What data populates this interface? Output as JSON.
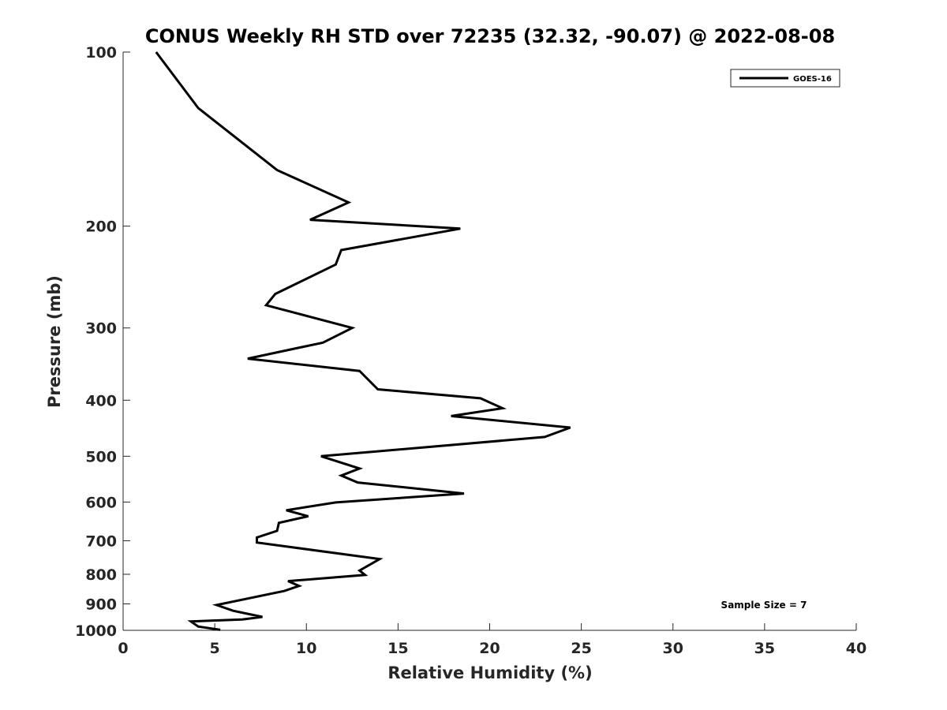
{
  "chart_data": {
    "type": "line",
    "title": "CONUS Weekly RH STD over 72235 (32.32, -90.07) @ 2022-08-08",
    "xlabel": "Relative Humidity (%)",
    "ylabel": "Pressure (mb)",
    "xlim": [
      0,
      40
    ],
    "ylim": [
      100,
      1000
    ],
    "yscale": "log",
    "y_reversed": true,
    "xticks": [
      0,
      5,
      10,
      15,
      20,
      25,
      30,
      35,
      40
    ],
    "yticks": [
      100,
      200,
      300,
      400,
      500,
      600,
      700,
      800,
      900,
      1000
    ],
    "grid": false,
    "legend_position": "top-right",
    "annotation": "Sample Size = 7",
    "series": [
      {
        "name": "GOES-16",
        "color": "#000000",
        "x": [
          1.8,
          4.1,
          8.4,
          12.3,
          10.2,
          18.4,
          11.9,
          11.6,
          8.3,
          7.8,
          12.5,
          10.9,
          6.8,
          12.9,
          13.9,
          19.5,
          20.7,
          17.9,
          24.4,
          23.0,
          10.8,
          12.9,
          11.9,
          12.8,
          18.6,
          11.6,
          8.9,
          10.1,
          8.5,
          8.4,
          7.3,
          7.3,
          14.0,
          12.9,
          13.2,
          9.0,
          9.6,
          8.8,
          5.1,
          6.0,
          7.6,
          6.5,
          3.7,
          4.1,
          5.3
        ],
        "y": [
          100,
          125,
          160,
          182,
          195,
          202,
          220,
          233,
          262,
          274,
          300,
          318,
          339,
          356,
          383,
          397,
          413,
          426,
          446,
          463,
          500,
          525,
          540,
          555,
          580,
          601,
          620,
          635,
          652,
          673,
          691,
          705,
          753,
          788,
          802,
          822,
          838,
          855,
          904,
          925,
          948,
          958,
          965,
          985,
          998
        ]
      }
    ]
  }
}
